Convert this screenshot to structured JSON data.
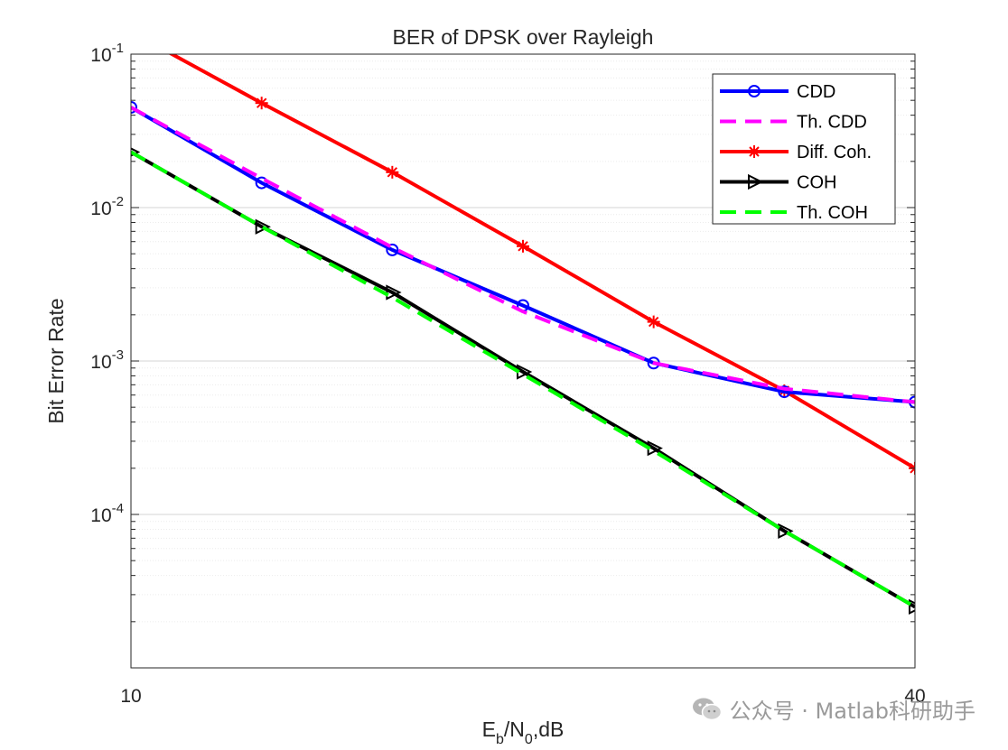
{
  "chart_data": {
    "type": "line",
    "title": "BER of DPSK over Rayleigh",
    "xlabel": {
      "base": "E",
      "sub1": "b",
      "mid": "/N",
      "sub2": "0",
      "tail": ",dB"
    },
    "ylabel": "Bit Error Rate",
    "xlim": [
      10,
      40
    ],
    "ylim": [
      1e-05,
      0.1
    ],
    "yscale": "log",
    "grid": true,
    "legend_position": "top-right",
    "x_ticks": [
      {
        "value": 10,
        "label": "10"
      },
      {
        "value": 40,
        "label": "40"
      }
    ],
    "y_ticks": [
      {
        "value": 0.1,
        "base": "10",
        "exp": "-1"
      },
      {
        "value": 0.01,
        "base": "10",
        "exp": "-2"
      },
      {
        "value": 0.001,
        "base": "10",
        "exp": "-3"
      },
      {
        "value": 0.0001,
        "base": "10",
        "exp": "-4"
      }
    ],
    "series": [
      {
        "name": "CDD",
        "color": "#0000ff",
        "dash": "solid",
        "marker": "circle",
        "x": [
          10,
          15,
          20,
          25,
          30,
          35,
          40
        ],
        "y": [
          0.045,
          0.0145,
          0.0053,
          0.0023,
          0.00097,
          0.00063,
          0.00054
        ]
      },
      {
        "name": "Th. CDD",
        "color": "#ff00ff",
        "dash": "dashed",
        "marker": "none",
        "x": [
          10,
          15,
          20,
          25,
          30,
          35,
          40
        ],
        "y": [
          0.045,
          0.0155,
          0.0055,
          0.0021,
          0.00097,
          0.00066,
          0.00054
        ]
      },
      {
        "name": "Diff. Coh.",
        "color": "#ff0000",
        "dash": "solid",
        "marker": "star",
        "x": [
          10,
          15,
          20,
          25,
          30,
          35,
          40
        ],
        "y": [
          0.14,
          0.048,
          0.017,
          0.0056,
          0.0018,
          0.00064,
          0.0002
        ]
      },
      {
        "name": "COH",
        "color": "#000000",
        "dash": "solid",
        "marker": "triangle-right",
        "x": [
          10,
          15,
          20,
          25,
          30,
          35,
          40
        ],
        "y": [
          0.023,
          0.0075,
          0.0028,
          0.00085,
          0.00027,
          7.8e-05,
          2.5e-05
        ]
      },
      {
        "name": "Th. COH",
        "color": "#00ff00",
        "dash": "dashed",
        "marker": "none",
        "x": [
          10,
          15,
          20,
          25,
          30,
          35,
          40
        ],
        "y": [
          0.023,
          0.0075,
          0.0026,
          0.00082,
          0.00026,
          7.8e-05,
          2.5e-05
        ]
      }
    ]
  },
  "watermark": {
    "text": "公众号 · Matlab科研助手",
    "icon": "wechat-icon"
  }
}
